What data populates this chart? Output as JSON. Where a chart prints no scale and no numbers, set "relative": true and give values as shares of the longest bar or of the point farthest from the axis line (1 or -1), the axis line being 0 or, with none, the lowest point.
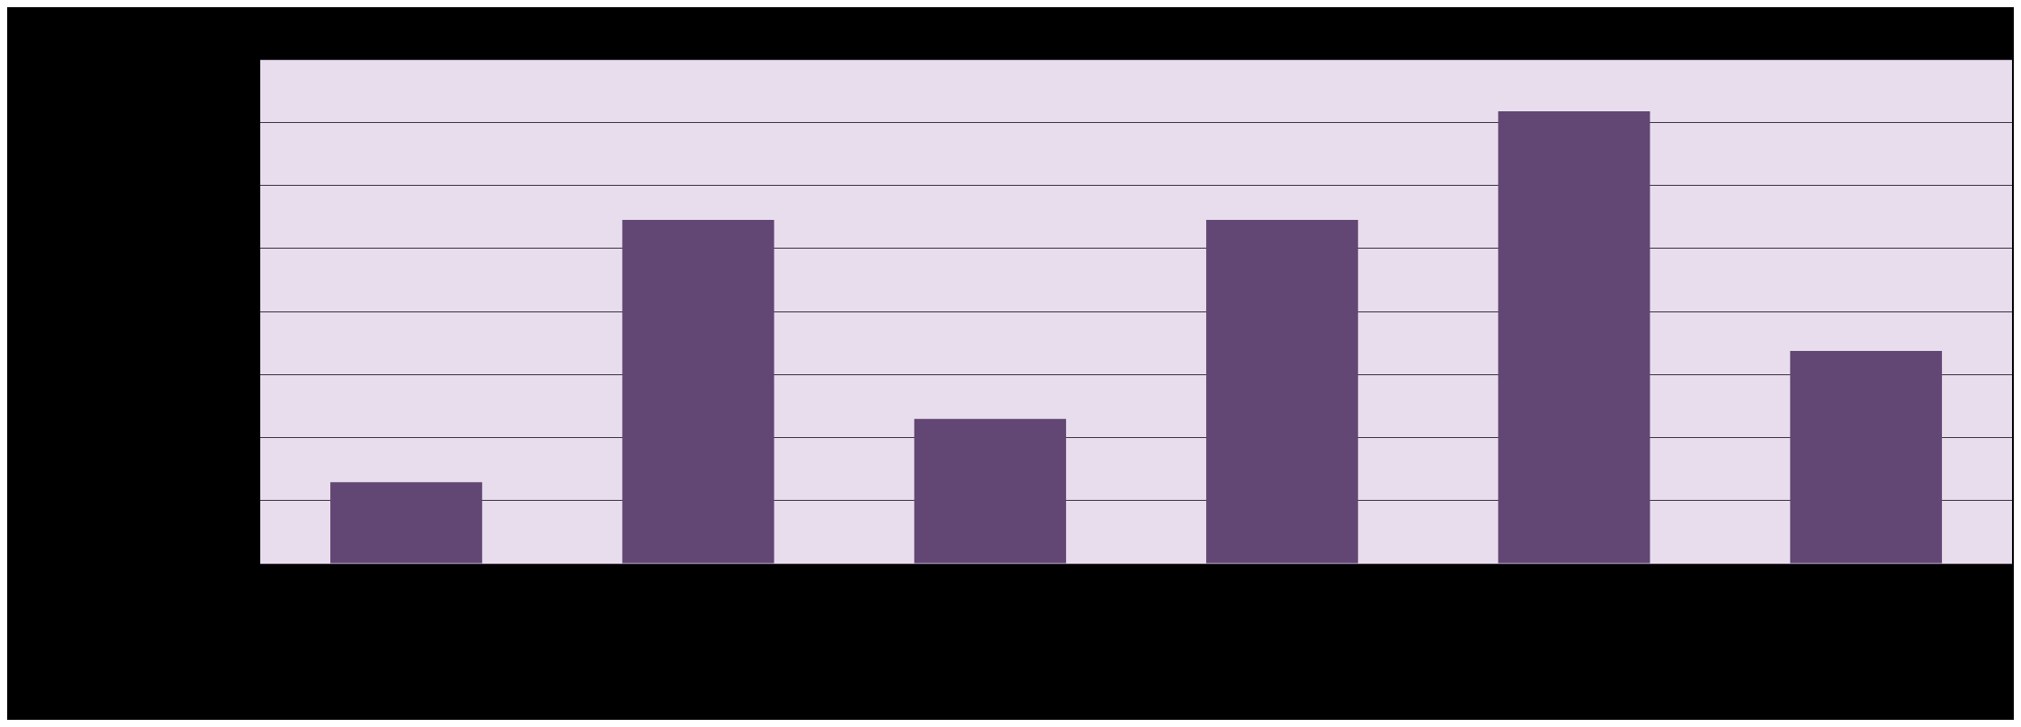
{
  "chart_data": {
    "type": "bar",
    "relative": true,
    "categories": [
      null,
      null,
      null,
      null,
      null,
      null
    ],
    "values": [
      0.18,
      0.76,
      0.32,
      0.76,
      1,
      0.47
    ],
    "color": "#624674",
    "grid": "y",
    "legend": false
  }
}
